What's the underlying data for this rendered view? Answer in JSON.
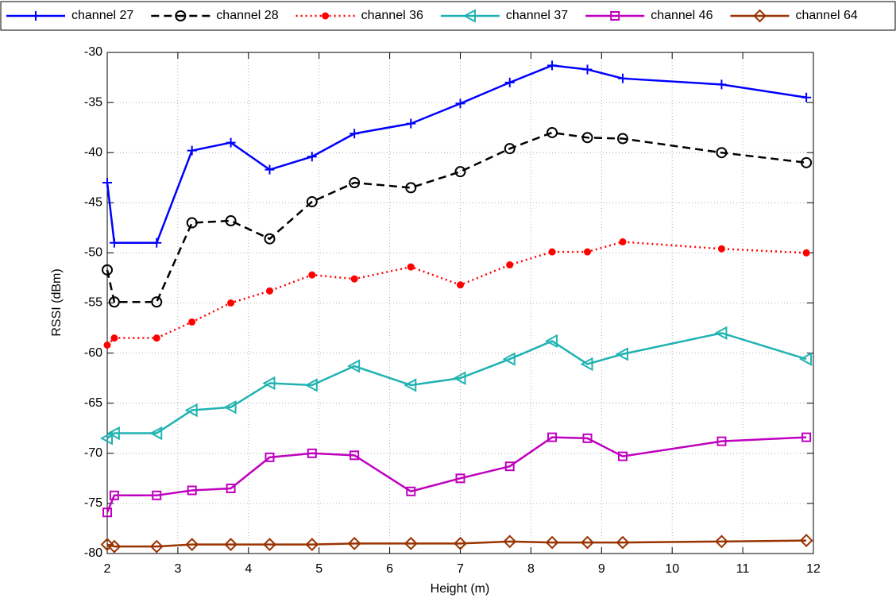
{
  "chart_data": {
    "type": "line",
    "x_label": "Height (m)",
    "y_label": "RSSI (dBm)",
    "x": [
      2,
      2.1,
      2.7,
      3.2,
      3.75,
      4.3,
      4.9,
      5.5,
      6.3,
      7,
      7.7,
      8.3,
      8.8,
      9.3,
      10.7,
      11.9
    ],
    "series": [
      {
        "name": "channel 27",
        "color": "#0000ff",
        "dash": "solid",
        "marker": "plus",
        "values": [
          -43.0,
          -49.0,
          -49.0,
          -39.8,
          -39.0,
          -41.7,
          -40.4,
          -38.1,
          -37.1,
          -35.1,
          -33.0,
          -31.3,
          -31.7,
          -32.6,
          -33.2,
          -34.5
        ]
      },
      {
        "name": "channel 28",
        "color": "#000000",
        "dash": "dashed",
        "marker": "circle",
        "values": [
          -51.7,
          -54.9,
          -54.9,
          -47.0,
          -46.8,
          -48.6,
          -44.9,
          -43.0,
          -43.5,
          -41.9,
          -39.6,
          -38.0,
          -38.5,
          -38.6,
          -40.0,
          -41.0
        ]
      },
      {
        "name": "channel 36",
        "color": "#ff0000",
        "dash": "dotted",
        "marker": "dot",
        "values": [
          -59.2,
          -58.5,
          -58.5,
          -56.9,
          -55.0,
          -53.8,
          -52.2,
          -52.6,
          -51.4,
          -53.2,
          -51.2,
          -49.9,
          -49.9,
          -48.9,
          -49.6,
          -50.0
        ]
      },
      {
        "name": "channel 37",
        "color": "#20b2b2",
        "dash": "solid",
        "marker": "triangle-left",
        "values": [
          -68.5,
          -68.0,
          -68.0,
          -65.7,
          -65.4,
          -63.0,
          -63.2,
          -61.3,
          -63.2,
          -62.5,
          -60.6,
          -58.8,
          -61.1,
          -60.1,
          -58.0,
          -60.6
        ]
      },
      {
        "name": "channel 46",
        "color": "#bf00bf",
        "dash": "solid",
        "marker": "square",
        "values": [
          -75.9,
          -74.2,
          -74.2,
          -73.7,
          -73.5,
          -70.4,
          -70.0,
          -70.2,
          -73.8,
          -72.5,
          -71.3,
          -68.4,
          -68.5,
          -70.3,
          -68.8,
          -68.4
        ]
      },
      {
        "name": "channel 64",
        "color": "#993300",
        "dash": "solid",
        "marker": "diamond",
        "values": [
          -79.1,
          -79.3,
          -79.3,
          -79.1,
          -79.1,
          -79.1,
          -79.1,
          -79.0,
          -79.0,
          -79.0,
          -78.8,
          -78.9,
          -78.9,
          -78.9,
          -78.8,
          -78.7
        ]
      }
    ],
    "xlim": [
      2,
      12
    ],
    "ylim": [
      -80,
      -30
    ],
    "xticks": [
      2,
      3,
      4,
      5,
      6,
      7,
      8,
      9,
      10,
      11,
      12
    ],
    "yticks": [
      -80,
      -75,
      -70,
      -65,
      -60,
      -55,
      -50,
      -45,
      -40,
      -35,
      -30
    ],
    "grid": true,
    "legend": "top"
  }
}
